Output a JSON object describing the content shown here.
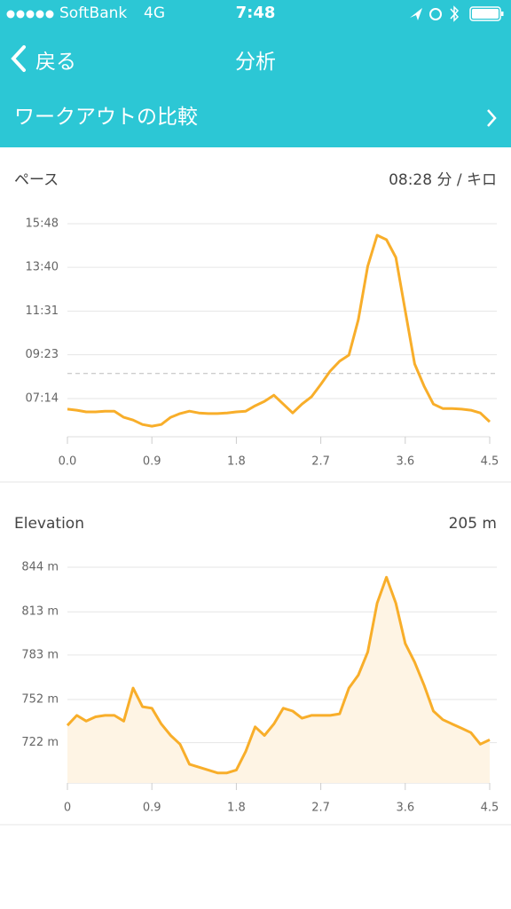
{
  "status": {
    "carrier": "SoftBank",
    "network": "4G",
    "time": "7:48"
  },
  "nav": {
    "back": "戻る",
    "title": "分析"
  },
  "row": {
    "label": "ワークアウトの比較"
  },
  "chart_data": [
    {
      "type": "line",
      "title": "ペース",
      "color": "#f8ae2a",
      "grid": true,
      "average": {
        "value": 508,
        "label": "08:28 分 / キロ"
      },
      "x": [
        0,
        0.1,
        0.2,
        0.3,
        0.4,
        0.5,
        0.6,
        0.7,
        0.8,
        0.9,
        1.0,
        1.1,
        1.2,
        1.3,
        1.4,
        1.5,
        1.6,
        1.7,
        1.8,
        1.9,
        2.0,
        2.1,
        2.2,
        2.3,
        2.4,
        2.5,
        2.6,
        2.7,
        2.8,
        2.9,
        3.0,
        3.1,
        3.2,
        3.3,
        3.4,
        3.5,
        3.6,
        3.7,
        3.8,
        3.9,
        4.0,
        4.1,
        4.2,
        4.3,
        4.4,
        4.5
      ],
      "values": [
        403,
        400,
        395,
        395,
        397,
        397,
        379,
        371,
        358,
        353,
        358,
        379,
        390,
        397,
        392,
        390,
        390,
        392,
        395,
        397,
        413,
        426,
        444,
        418,
        392,
        418,
        439,
        476,
        515,
        544,
        562,
        666,
        823,
        914,
        901,
        849,
        692,
        536,
        471,
        418,
        405,
        405,
        403,
        400,
        392,
        366
      ],
      "xlim": [
        0,
        4.5
      ],
      "xticks": [
        {
          "value": 0,
          "label": "0.0"
        },
        0.9,
        1.8,
        2.7,
        3.6,
        4.5
      ],
      "ylim": [
        322,
        948
      ],
      "yticks": [
        {
          "value": 948,
          "label": "15:48"
        },
        {
          "value": 820,
          "label": "13:40"
        },
        {
          "value": 691,
          "label": "11:31"
        },
        {
          "value": 563,
          "label": "09:23"
        },
        {
          "value": 434,
          "label": "07:14"
        }
      ]
    },
    {
      "type": "area",
      "title": "Elevation",
      "summary": "205 m",
      "color": "#f8ae2a",
      "fill": "#fef4e4",
      "grid": true,
      "x": [
        0,
        0.1,
        0.2,
        0.3,
        0.4,
        0.5,
        0.6,
        0.7,
        0.8,
        0.9,
        1.0,
        1.1,
        1.2,
        1.3,
        1.4,
        1.5,
        1.6,
        1.7,
        1.8,
        1.9,
        2.0,
        2.1,
        2.2,
        2.3,
        2.4,
        2.5,
        2.6,
        2.7,
        2.8,
        2.9,
        3.0,
        3.1,
        3.2,
        3.3,
        3.4,
        3.5,
        3.6,
        3.7,
        3.8,
        3.9,
        4.0,
        4.1,
        4.2,
        4.3,
        4.4,
        4.5
      ],
      "values": [
        734,
        741,
        737,
        740,
        741,
        741,
        737,
        760,
        747,
        746,
        735,
        727,
        721,
        707,
        705,
        703,
        701,
        701,
        703,
        716,
        733,
        727,
        735,
        746,
        744,
        739,
        741,
        741,
        741,
        742,
        760,
        769,
        785,
        819,
        837,
        819,
        791,
        778,
        762,
        744,
        738,
        735,
        732,
        729,
        721,
        724
      ],
      "xlim": [
        0,
        4.5
      ],
      "xticks": [
        0,
        0.9,
        1.8,
        2.7,
        3.6,
        4.5
      ],
      "ylim": [
        694,
        844
      ],
      "yticks": [
        {
          "value": 844,
          "label": "844 m"
        },
        {
          "value": 813,
          "label": "813 m"
        },
        {
          "value": 783,
          "label": "783 m"
        },
        {
          "value": 752,
          "label": "752 m"
        },
        {
          "value": 722,
          "label": "722 m"
        }
      ]
    }
  ]
}
